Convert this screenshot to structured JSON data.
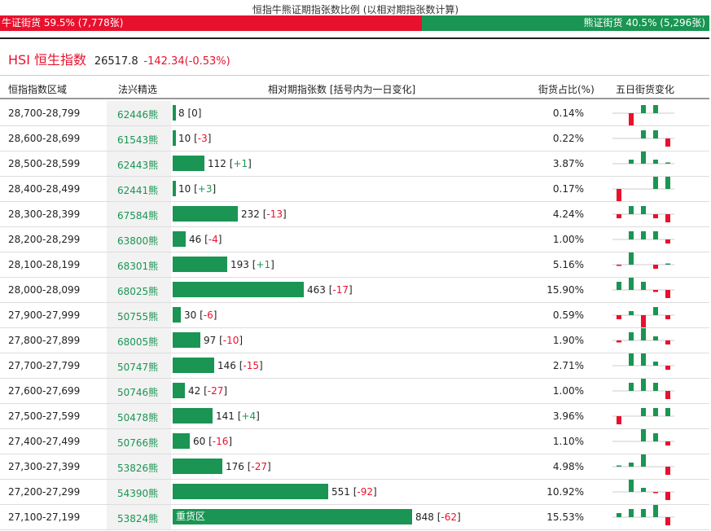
{
  "header": {
    "title": "恒指牛熊证期指张数比例 (以相对期指张数计算)",
    "bull_label": "牛证街货 59.5% (7,778张)",
    "bear_label": "熊证街货 40.5% (5,296张)",
    "bull_share": 0.595
  },
  "index": {
    "name": "HSI 恒生指数",
    "price": "26517.8",
    "change": "-142.34(-0.53%)"
  },
  "columns": {
    "range": "恒指指数区域",
    "issuer": "法兴精选",
    "contracts": "相对期指张数 [括号内为一日变化]",
    "share": "街货占比(%)",
    "five_day": "五日街货变化"
  },
  "colors": {
    "bull": "#e8112d",
    "bear": "#1a9553"
  },
  "max_contracts": 848,
  "rows": [
    {
      "range": "28,700-28,799",
      "code": "62446熊",
      "contracts": 8,
      "change": "0",
      "share": "0.14%",
      "spark": [
        0,
        -3,
        2,
        2,
        0
      ]
    },
    {
      "range": "28,600-28,699",
      "code": "61543熊",
      "contracts": 10,
      "change": "-3",
      "share": "0.22%",
      "spark": [
        0,
        0,
        2,
        2,
        -2
      ]
    },
    {
      "range": "28,500-28,599",
      "code": "62443熊",
      "contracts": 112,
      "change": "+1",
      "share": "3.87%",
      "spark": [
        0,
        1,
        3,
        1,
        0.3
      ]
    },
    {
      "range": "28,400-28,499",
      "code": "62441熊",
      "contracts": 10,
      "change": "+3",
      "share": "0.17%",
      "spark": [
        -3,
        0,
        0,
        3,
        3
      ]
    },
    {
      "range": "28,300-28,399",
      "code": "67584熊",
      "contracts": 232,
      "change": "-13",
      "share": "4.24%",
      "spark": [
        -1,
        2,
        2,
        -1,
        -2
      ]
    },
    {
      "range": "28,200-28,299",
      "code": "63800熊",
      "contracts": 46,
      "change": "-4",
      "share": "1.00%",
      "spark": [
        0,
        2,
        2,
        2,
        -1
      ]
    },
    {
      "range": "28,100-28,199",
      "code": "68301熊",
      "contracts": 193,
      "change": "+1",
      "share": "5.16%",
      "spark": [
        -0.3,
        3,
        0,
        -1,
        0.3
      ]
    },
    {
      "range": "28,000-28,099",
      "code": "68025熊",
      "contracts": 463,
      "change": "-17",
      "share": "15.90%",
      "spark": [
        2,
        3,
        2,
        -0.5,
        -2
      ]
    },
    {
      "range": "27,900-27,999",
      "code": "50755熊",
      "contracts": 30,
      "change": "-6",
      "share": "0.59%",
      "spark": [
        -1,
        1,
        -3,
        2,
        -1
      ]
    },
    {
      "range": "27,800-27,899",
      "code": "68005熊",
      "contracts": 97,
      "change": "-10",
      "share": "1.90%",
      "spark": [
        -0.5,
        2,
        3,
        1,
        -1
      ]
    },
    {
      "range": "27,700-27,799",
      "code": "50747熊",
      "contracts": 146,
      "change": "-15",
      "share": "2.71%",
      "spark": [
        0,
        3,
        3,
        1,
        -1
      ]
    },
    {
      "range": "27,600-27,699",
      "code": "50746熊",
      "contracts": 42,
      "change": "-27",
      "share": "1.00%",
      "spark": [
        0,
        2,
        3,
        2,
        -2
      ]
    },
    {
      "range": "27,500-27,599",
      "code": "50478熊",
      "contracts": 141,
      "change": "+4",
      "share": "3.96%",
      "spark": [
        -2,
        0,
        2,
        2,
        2
      ]
    },
    {
      "range": "27,400-27,499",
      "code": "50766熊",
      "contracts": 60,
      "change": "-16",
      "share": "1.10%",
      "spark": [
        0,
        0,
        3,
        2,
        -1
      ]
    },
    {
      "range": "27,300-27,399",
      "code": "53826熊",
      "contracts": 176,
      "change": "-27",
      "share": "4.98%",
      "spark": [
        0.3,
        1,
        3,
        0,
        -2
      ]
    },
    {
      "range": "27,200-27,299",
      "code": "54390熊",
      "contracts": 551,
      "change": "-92",
      "share": "10.92%",
      "spark": [
        0,
        3,
        1,
        -0.3,
        -2
      ]
    },
    {
      "range": "27,100-27,199",
      "code": "53824熊",
      "contracts": 848,
      "change": "-62",
      "share": "15.53%",
      "label": "重货区",
      "spark": [
        1,
        2,
        2,
        3,
        -2
      ]
    }
  ]
}
